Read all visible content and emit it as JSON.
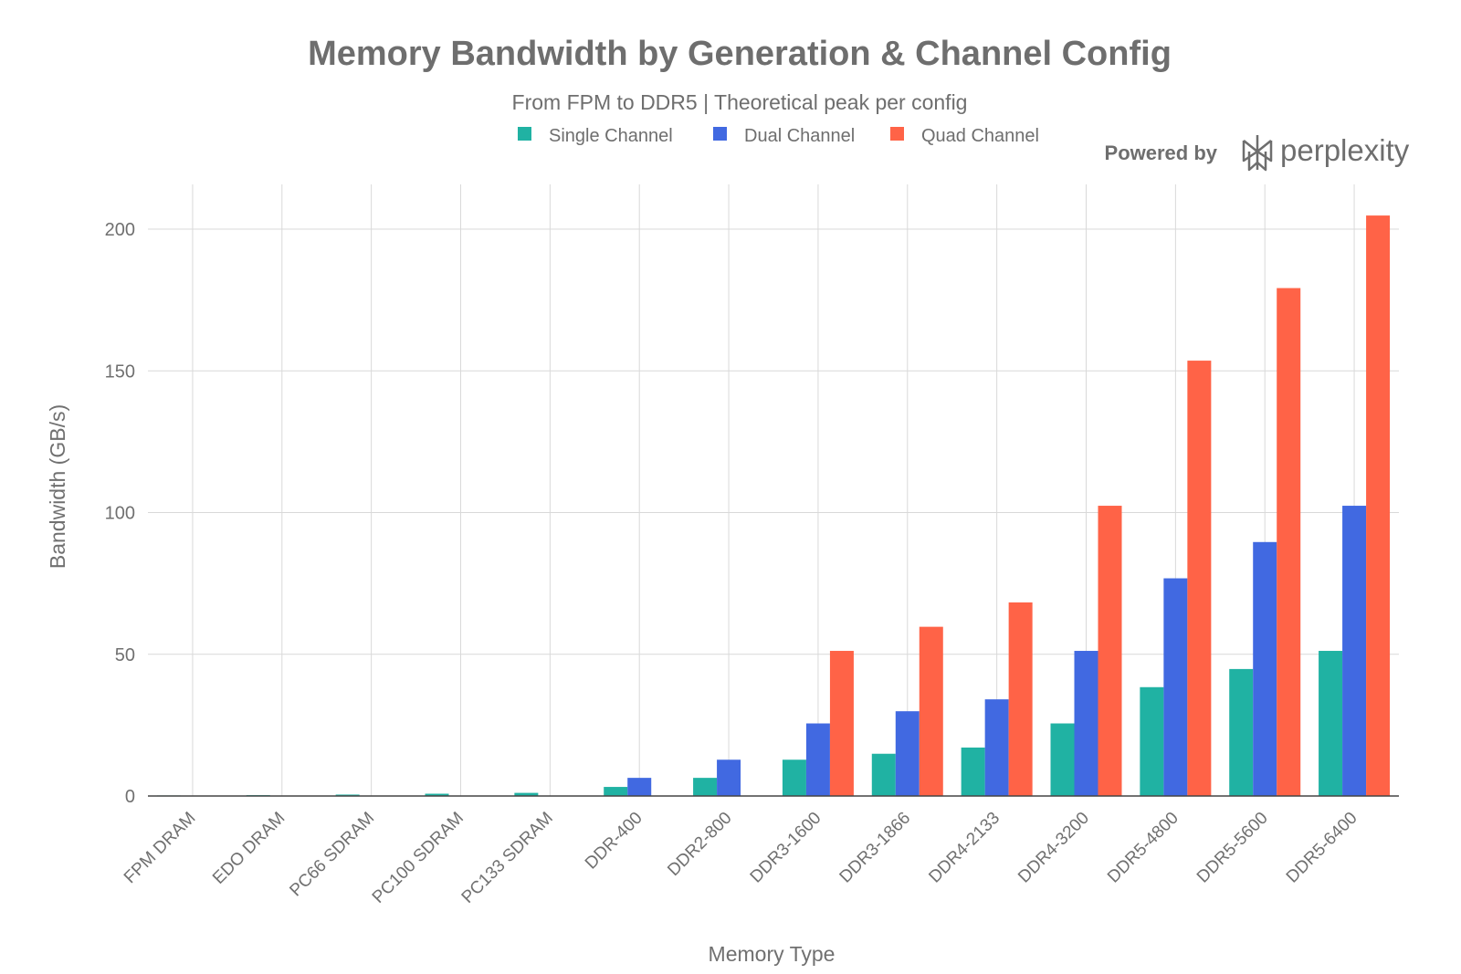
{
  "chart_data": {
    "type": "bar",
    "title": "Memory Bandwidth by Generation & Channel Config",
    "subtitle": "From FPM to DDR5 | Theoretical peak per config",
    "xlabel": "Memory Type",
    "ylabel": "Bandwidth (GB/s)",
    "ylim": [
      0,
      215
    ],
    "yticks": [
      0,
      50,
      100,
      150,
      200
    ],
    "grid": true,
    "legend_position": "top",
    "categories": [
      "FPM DRAM",
      "EDO DRAM",
      "PC66 SDRAM",
      "PC100 SDRAM",
      "PC133 SDRAM",
      "DDR-400",
      "DDR2-800",
      "DDR3-1600",
      "DDR3-1866",
      "DDR4-2133",
      "DDR4-3200",
      "DDR5-4800",
      "DDR5-5600",
      "DDR5-6400"
    ],
    "series": [
      {
        "name": "Single Channel",
        "color": "#20b2a3",
        "values": [
          0.1,
          0.3,
          0.5,
          0.8,
          1.1,
          3.2,
          6.4,
          12.8,
          14.9,
          17.1,
          25.6,
          38.4,
          44.8,
          51.2
        ]
      },
      {
        "name": "Dual Channel",
        "color": "#4169e1",
        "values": [
          null,
          null,
          null,
          null,
          null,
          6.4,
          12.8,
          25.6,
          29.9,
          34.1,
          51.2,
          76.8,
          89.6,
          102.4
        ]
      },
      {
        "name": "Quad Channel",
        "color": "#ff6347",
        "values": [
          null,
          null,
          null,
          null,
          null,
          null,
          null,
          51.2,
          59.7,
          68.3,
          102.4,
          153.6,
          179.2,
          204.8
        ]
      }
    ]
  },
  "branding": {
    "powered_by": "Powered by",
    "brand_name": "perplexity",
    "logo_icon": "perplexity-logo-icon"
  }
}
